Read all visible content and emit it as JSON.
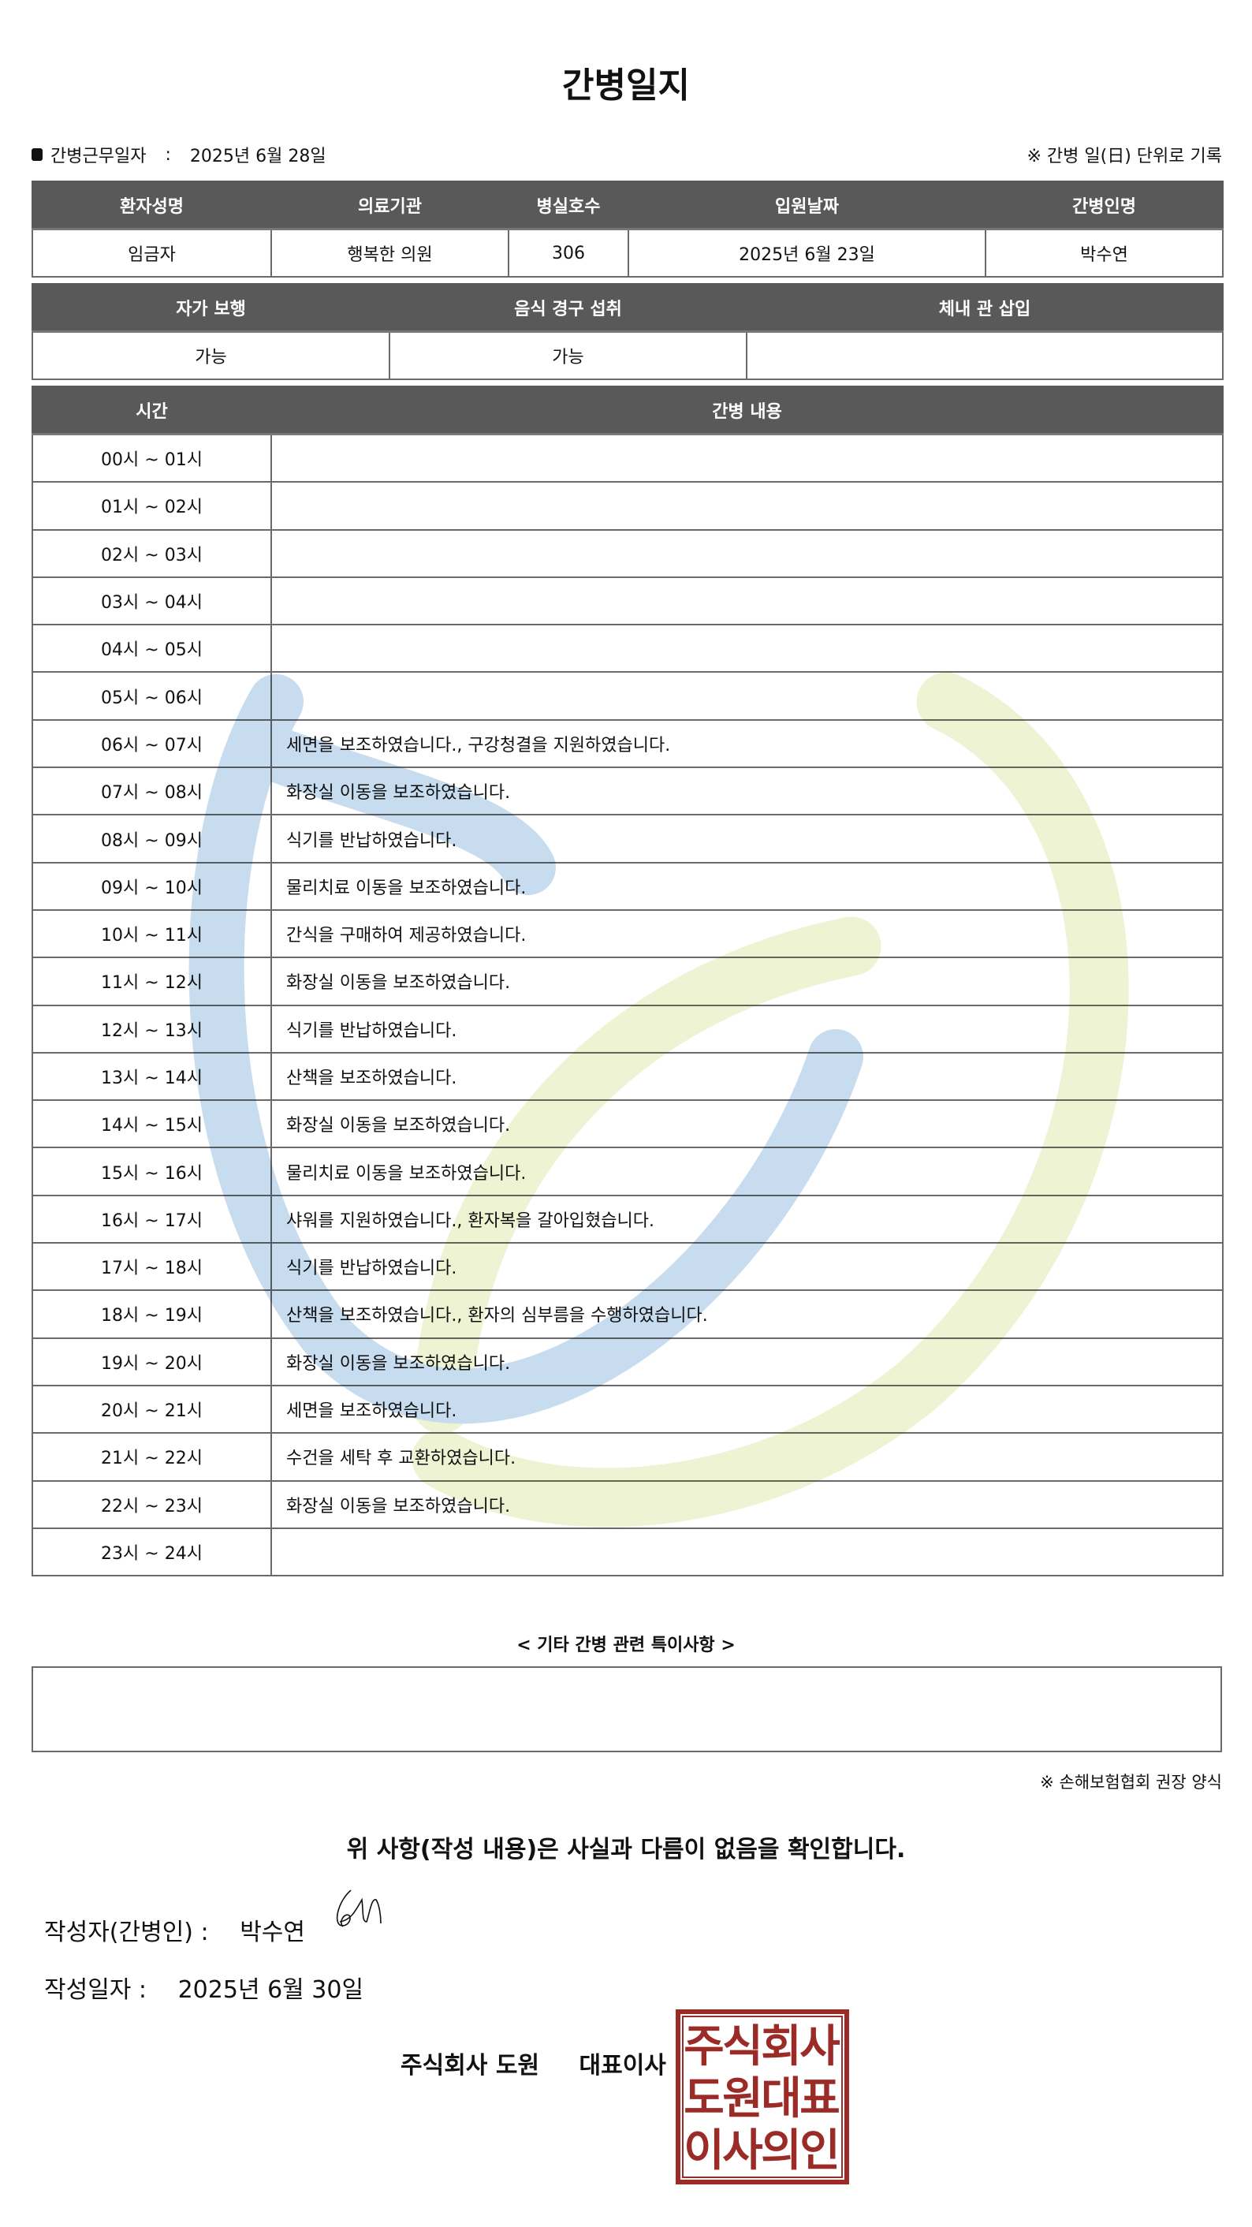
{
  "title": "간병일지",
  "info": {
    "label": "간병근무일자",
    "sep": ":",
    "value": "2025년 6월 28일",
    "note": "※ 간병 일(日) 단위로 기록"
  },
  "patient_table": {
    "headers": [
      "환자성명",
      "의료기관",
      "병실호수",
      "입원날짜",
      "간병인명"
    ],
    "values": [
      "임금자",
      "행복한 의원",
      "306",
      "2025년 6월 23일",
      "박수연"
    ]
  },
  "status_table": {
    "headers": [
      "자가 보행",
      "음식 경구 섭취",
      "체내 관 삽입"
    ],
    "values": [
      "가능",
      "가능",
      ""
    ]
  },
  "log_table": {
    "headers": [
      "시간",
      "간병 내용"
    ],
    "rows": [
      {
        "time": "00시 ~ 01시",
        "content": ""
      },
      {
        "time": "01시 ~ 02시",
        "content": ""
      },
      {
        "time": "02시 ~ 03시",
        "content": ""
      },
      {
        "time": "03시 ~ 04시",
        "content": ""
      },
      {
        "time": "04시 ~ 05시",
        "content": ""
      },
      {
        "time": "05시 ~ 06시",
        "content": ""
      },
      {
        "time": "06시 ~ 07시",
        "content": "세면을 보조하였습니다., 구강청결을 지원하였습니다."
      },
      {
        "time": "07시 ~ 08시",
        "content": "화장실 이동을 보조하였습니다."
      },
      {
        "time": "08시 ~ 09시",
        "content": "식기를 반납하였습니다."
      },
      {
        "time": "09시 ~ 10시",
        "content": "물리치료 이동을 보조하였습니다."
      },
      {
        "time": "10시 ~ 11시",
        "content": "간식을 구매하여 제공하였습니다."
      },
      {
        "time": "11시 ~ 12시",
        "content": "화장실 이동을 보조하였습니다."
      },
      {
        "time": "12시 ~ 13시",
        "content": "식기를 반납하였습니다."
      },
      {
        "time": "13시 ~ 14시",
        "content": "산책을 보조하였습니다."
      },
      {
        "time": "14시 ~ 15시",
        "content": "화장실 이동을 보조하였습니다."
      },
      {
        "time": "15시 ~ 16시",
        "content": "물리치료 이동을 보조하였습니다."
      },
      {
        "time": "16시 ~ 17시",
        "content": "샤워를 지원하였습니다., 환자복을 갈아입혔습니다."
      },
      {
        "time": "17시 ~ 18시",
        "content": "식기를 반납하였습니다."
      },
      {
        "time": "18시 ~ 19시",
        "content": "산책을 보조하였습니다., 환자의 심부름을 수행하였습니다."
      },
      {
        "time": "19시 ~ 20시",
        "content": "화장실 이동을 보조하였습니다."
      },
      {
        "time": "20시 ~ 21시",
        "content": "세면을 보조하였습니다."
      },
      {
        "time": "21시 ~ 22시",
        "content": "수건을 세탁 후 교환하였습니다."
      },
      {
        "time": "22시 ~ 23시",
        "content": "화장실 이동을 보조하였습니다."
      },
      {
        "time": "23시 ~ 24시",
        "content": ""
      }
    ]
  },
  "etc": {
    "label": "< 기타 간병 관련 특이사항 >",
    "value": ""
  },
  "note2": "※ 손해보험협회 권장 양식",
  "confirm": "위 사항(작성 내용)은 사실과 다름이 없음을 확인합니다.",
  "writer": {
    "label": "작성자(간병인) :",
    "value": "박수연"
  },
  "written_date": {
    "label": "작성일자 :",
    "value": "2025년 6월 30일"
  },
  "company": {
    "name": "주식회사 도원",
    "title": "대표이사"
  },
  "stamp": {
    "text": [
      "주식회사",
      "도원대표",
      "이사의인"
    ],
    "color": "#9b2b27"
  },
  "colors": {
    "header_bg": "#595959",
    "watermark_blue": "#c7dcee",
    "watermark_green": "#eef3d3"
  }
}
